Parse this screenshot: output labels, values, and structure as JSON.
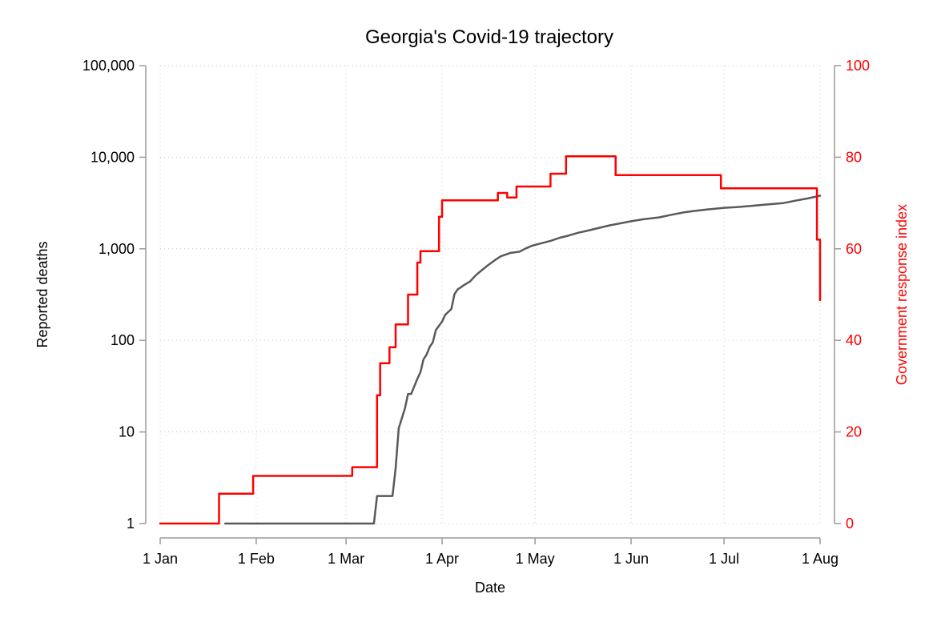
{
  "chart_data": {
    "type": "line",
    "title": "Georgia's Covid-19 trajectory",
    "xlabel": "Date",
    "ylabel_left": "Reported deaths",
    "ylabel_right": "Government response index",
    "x_ticks": [
      "1 Jan",
      "1 Feb",
      "1 Mar",
      "1 Apr",
      "1 May",
      "1 Jun",
      "1 Jul",
      "1 Aug"
    ],
    "x_tick_dates": [
      "2020-01-01",
      "2020-02-01",
      "2020-03-01",
      "2020-04-01",
      "2020-05-01",
      "2020-06-01",
      "2020-07-01",
      "2020-08-01"
    ],
    "left_axis": {
      "scale": "log",
      "ylim": [
        1,
        100000
      ],
      "ticks": [
        1,
        10,
        100,
        1000,
        10000,
        100000
      ],
      "tick_labels": [
        "1",
        "10",
        "100",
        "1,000",
        "10,000",
        "100,000"
      ]
    },
    "right_axis": {
      "scale": "linear",
      "ylim": [
        0,
        100
      ],
      "ticks": [
        0,
        20,
        40,
        60,
        80,
        100
      ],
      "tick_labels": [
        "0",
        "20",
        "40",
        "60",
        "80",
        "100"
      ],
      "color": "#ff0000"
    },
    "grid": true,
    "series": [
      {
        "name": "",
        "axis": "left",
        "color": "#595959",
        "step": false,
        "points": [
          [
            "2020-01-22",
            1
          ],
          [
            "2020-03-10",
            1
          ],
          [
            "2020-03-11",
            2
          ],
          [
            "2020-03-16",
            2
          ],
          [
            "2020-03-17",
            4
          ],
          [
            "2020-03-18",
            11
          ],
          [
            "2020-03-20",
            18
          ],
          [
            "2020-03-21",
            26
          ],
          [
            "2020-03-22",
            26
          ],
          [
            "2020-03-24",
            38
          ],
          [
            "2020-03-25",
            45
          ],
          [
            "2020-03-26",
            62
          ],
          [
            "2020-03-27",
            70
          ],
          [
            "2020-03-28",
            85
          ],
          [
            "2020-03-29",
            95
          ],
          [
            "2020-03-30",
            130
          ],
          [
            "2020-04-01",
            160
          ],
          [
            "2020-04-02",
            190
          ],
          [
            "2020-04-04",
            220
          ],
          [
            "2020-04-05",
            320
          ],
          [
            "2020-04-06",
            360
          ],
          [
            "2020-04-08",
            400
          ],
          [
            "2020-04-10",
            440
          ],
          [
            "2020-04-12",
            520
          ],
          [
            "2020-04-14",
            590
          ],
          [
            "2020-04-16",
            670
          ],
          [
            "2020-04-18",
            750
          ],
          [
            "2020-04-20",
            830
          ],
          [
            "2020-04-23",
            900
          ],
          [
            "2020-04-26",
            930
          ],
          [
            "2020-04-28",
            1010
          ],
          [
            "2020-04-30",
            1080
          ],
          [
            "2020-05-03",
            1150
          ],
          [
            "2020-05-06",
            1220
          ],
          [
            "2020-05-09",
            1320
          ],
          [
            "2020-05-12",
            1400
          ],
          [
            "2020-05-15",
            1500
          ],
          [
            "2020-05-18",
            1580
          ],
          [
            "2020-05-22",
            1700
          ],
          [
            "2020-05-25",
            1800
          ],
          [
            "2020-05-28",
            1880
          ],
          [
            "2020-06-01",
            2000
          ],
          [
            "2020-06-05",
            2100
          ],
          [
            "2020-06-10",
            2200
          ],
          [
            "2020-06-14",
            2350
          ],
          [
            "2020-06-18",
            2500
          ],
          [
            "2020-06-22",
            2600
          ],
          [
            "2020-06-26",
            2700
          ],
          [
            "2020-07-01",
            2800
          ],
          [
            "2020-07-05",
            2850
          ],
          [
            "2020-07-10",
            2950
          ],
          [
            "2020-07-15",
            3050
          ],
          [
            "2020-07-20",
            3150
          ],
          [
            "2020-07-24",
            3350
          ],
          [
            "2020-07-28",
            3550
          ],
          [
            "2020-08-01",
            3800
          ]
        ]
      },
      {
        "name": "",
        "axis": "right",
        "color": "#ff0000",
        "step": true,
        "points": [
          [
            "2020-01-01",
            0
          ],
          [
            "2020-01-20",
            6.5
          ],
          [
            "2020-01-31",
            10.4
          ],
          [
            "2020-03-03",
            12.3
          ],
          [
            "2020-03-11",
            28
          ],
          [
            "2020-03-12",
            35
          ],
          [
            "2020-03-15",
            38.5
          ],
          [
            "2020-03-17",
            43.5
          ],
          [
            "2020-03-21",
            50
          ],
          [
            "2020-03-24",
            57
          ],
          [
            "2020-03-25",
            59.5
          ],
          [
            "2020-03-31",
            67
          ],
          [
            "2020-04-01",
            70.6
          ],
          [
            "2020-04-19",
            72.2
          ],
          [
            "2020-04-22",
            71.2
          ],
          [
            "2020-04-25",
            73.6
          ],
          [
            "2020-05-06",
            76.4
          ],
          [
            "2020-05-11",
            80.2
          ],
          [
            "2020-05-27",
            76.1
          ],
          [
            "2020-06-30",
            73.2
          ],
          [
            "2020-07-30",
            73.2
          ],
          [
            "2020-07-31",
            62
          ],
          [
            "2020-08-01",
            48.8
          ]
        ]
      }
    ]
  }
}
